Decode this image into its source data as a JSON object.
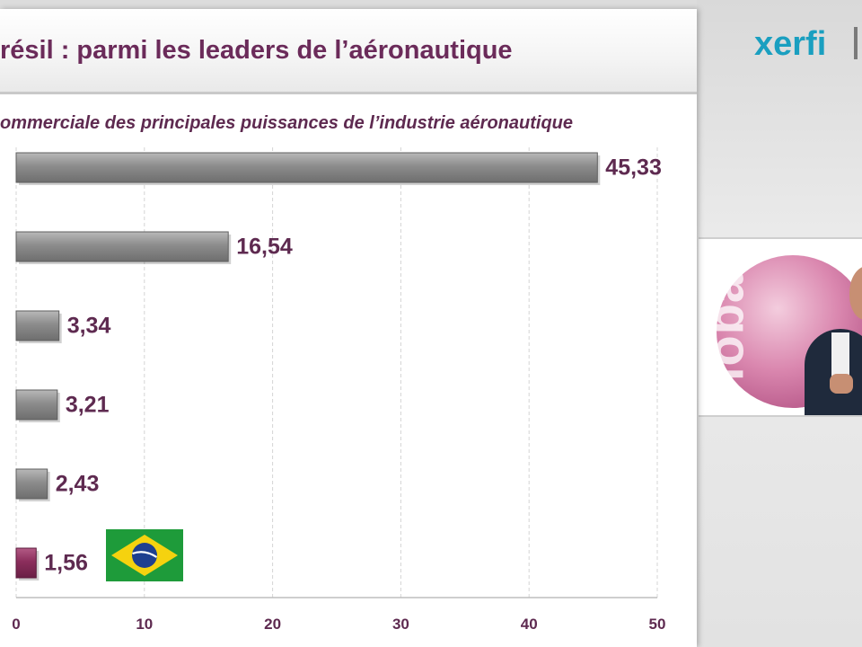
{
  "slide": {
    "title": "résil : parmi les leaders de l’aéronautique",
    "subtitle": "ommerciale des principales puissances de l’industrie aéronautique"
  },
  "logo": {
    "text": "xerfi"
  },
  "video": {
    "overlay_word": "Global"
  },
  "colors": {
    "title": "#6b2b5a",
    "label": "#5e2a50",
    "bar_gray": "#8c8c8c",
    "bar_highlight": "#8b2e5c",
    "logo": "#1a9fc0"
  },
  "chart_data": {
    "type": "bar",
    "orientation": "horizontal",
    "values": [
      45.33,
      16.54,
      3.34,
      3.21,
      2.43,
      1.56
    ],
    "value_labels": [
      "45,33",
      "16,54",
      "3,34",
      "3,21",
      "2,43",
      "1,56"
    ],
    "highlight_index": 5,
    "xlim": [
      0,
      50
    ],
    "xticks": [
      0,
      10,
      20,
      30,
      40,
      50
    ],
    "grid": true,
    "annotations": [
      {
        "type": "flag",
        "country": "Brazil",
        "bar_index": 5
      }
    ]
  }
}
